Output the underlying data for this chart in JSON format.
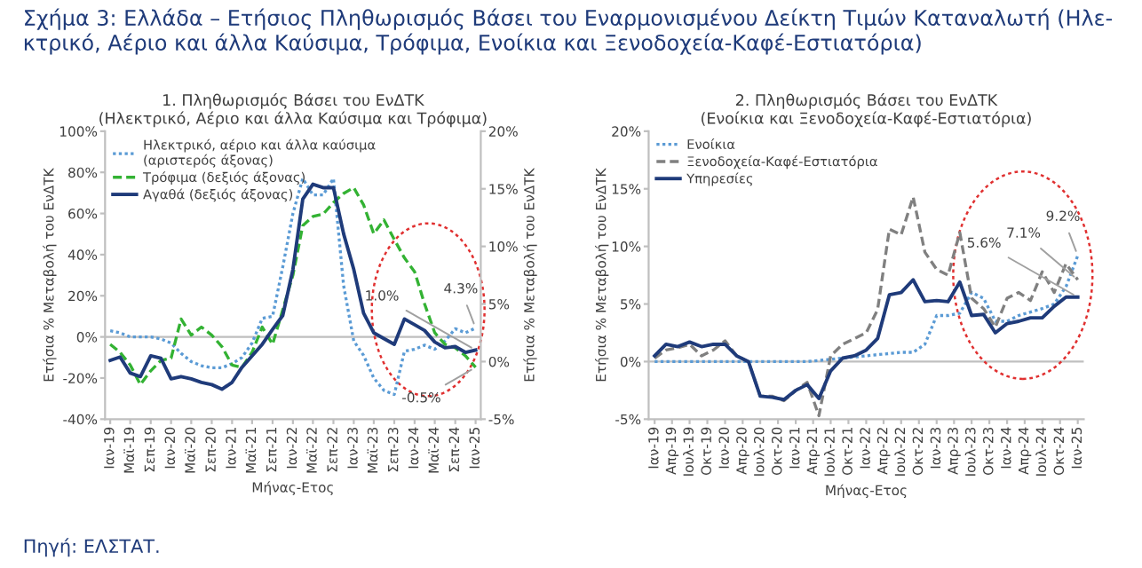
{
  "chart_data": [
    {
      "type": "line",
      "title": "1. Πληθωρισμός Βάσει του ΕνΔΤΚ\n(Ηλεκτρικό, Αέριο και άλλα Καύσιμα και Τρόφιμα)",
      "xlabel": "Μήνας-Ετος",
      "ylabel": "Ετήσια % Μεταβολή του ΕνΔΤΚ",
      "y2label": "Ετήσια % Μεταβολή του ΕνΔΤΚ",
      "annotations": [
        "Σχήμα 3: Ελλάδα – Ετήσιος Πληθωρισμός Βάσει του Εναρμονισμένου Δείκτη Τιμών Καταναλωτή (Ηλε-\nκτρικό, Αέριο και άλλα Καύσιμα, Τρόφιμα, Ενοίκια και Ξενοδοχεία-Καφέ-Εστιατόρια)",
        "Πηγή: ΕΛΣΤΑΤ."
      ],
      "x": [
        "2019-01",
        "2019-03",
        "2019-05",
        "2019-07",
        "2019-09",
        "2019-11",
        "2020-01",
        "2020-03",
        "2020-05",
        "2020-07",
        "2020-09",
        "2020-11",
        "2021-01",
        "2021-03",
        "2021-05",
        "2021-07",
        "2021-09",
        "2021-11",
        "2022-01",
        "2022-03",
        "2022-05",
        "2022-07",
        "2022-09",
        "2022-11",
        "2023-01",
        "2023-03",
        "2023-05",
        "2023-07",
        "2023-09",
        "2023-11",
        "2024-01",
        "2024-03",
        "2024-05",
        "2024-07",
        "2024-09",
        "2024-11",
        "2025-01"
      ],
      "series": [
        {
          "name": "Ηλεκτρικό, αέριο και άλλα καύσιμα\n(αριστερός άξονας)",
          "color": "#5b9bd5",
          "line_style": "dotted",
          "values": [
            3,
            2,
            0,
            0,
            0,
            -1,
            -3,
            -8,
            -12,
            -14,
            -15,
            -15,
            -13,
            -10,
            -3,
            9,
            10,
            34,
            60,
            77,
            69,
            69,
            77,
            25,
            -2,
            -9,
            -20,
            -26,
            -28,
            -7,
            -6,
            -4,
            -6,
            -2,
            4,
            2,
            4.3
          ],
          "value_labels": [
            null,
            null,
            null,
            null,
            null,
            null,
            null,
            null,
            null,
            null,
            null,
            null,
            null,
            null,
            null,
            null,
            null,
            null,
            null,
            null,
            null,
            null,
            null,
            null,
            null,
            null,
            null,
            null,
            null,
            null,
            null,
            null,
            null,
            null,
            null,
            null,
            "4.3%"
          ]
        },
        {
          "name": "Τρόφιμα (δεξιός άξονας)",
          "color": "#33b233",
          "line_style": "dashed",
          "axis": "y2",
          "values": [
            1.5,
            0.8,
            -0.3,
            -2.0,
            -0.8,
            0.1,
            0.3,
            3.7,
            2.3,
            3,
            2.3,
            1.3,
            -0.3,
            -0.5,
            0.8,
            3,
            1.5,
            4.5,
            7.5,
            11.8,
            12.6,
            12.8,
            13.8,
            14.6,
            15.1,
            13.6,
            11.1,
            12.3,
            10.6,
            9.0,
            7.8,
            5.0,
            2.5,
            1.5,
            1.2,
            0.5,
            -0.5
          ],
          "value_labels": [
            null,
            null,
            null,
            null,
            null,
            null,
            null,
            null,
            null,
            null,
            null,
            null,
            null,
            null,
            null,
            null,
            null,
            null,
            null,
            null,
            null,
            null,
            null,
            null,
            null,
            null,
            null,
            null,
            null,
            null,
            null,
            null,
            null,
            null,
            null,
            null,
            "-0.5%"
          ]
        },
        {
          "name": "Αγαθά (δεξιός άξονας)",
          "color": "#1f3b7a",
          "line_style": "solid",
          "axis": "y2",
          "values": [
            0.1,
            0.4,
            -1.0,
            -1.3,
            0.5,
            0.3,
            -1.5,
            -1.3,
            -1.5,
            -1.8,
            -2.0,
            -2.4,
            -1.8,
            -0.5,
            0.5,
            1.5,
            2.8,
            4.0,
            8.0,
            14.1,
            15.4,
            15.1,
            15.1,
            11.1,
            8.0,
            4.2,
            2.5,
            2.0,
            1.5,
            3.7,
            3.2,
            2.7,
            1.7,
            1.2,
            1.3,
            0.8,
            1.0
          ],
          "value_labels": [
            null,
            null,
            null,
            null,
            null,
            null,
            null,
            null,
            null,
            null,
            null,
            null,
            null,
            null,
            null,
            null,
            null,
            null,
            null,
            null,
            null,
            null,
            null,
            null,
            null,
            null,
            null,
            null,
            null,
            null,
            null,
            null,
            null,
            null,
            null,
            null,
            "1.0%"
          ]
        }
      ],
      "xlim": [
        "2018-12",
        "2025-02"
      ],
      "xticks": [
        {
          "value": "2019-01",
          "label": "Ιαν-19"
        },
        {
          "value": "2019-05",
          "label": "Μαϊ-19"
        },
        {
          "value": "2019-09",
          "label": "Σεπ-19"
        },
        {
          "value": "2020-01",
          "label": "Ιαν-20"
        },
        {
          "value": "2020-05",
          "label": "Μαϊ-20"
        },
        {
          "value": "2020-09",
          "label": "Σεπ-20"
        },
        {
          "value": "2021-01",
          "label": "Ιαν-21"
        },
        {
          "value": "2021-05",
          "label": "Μαϊ-21"
        },
        {
          "value": "2021-09",
          "label": "Σεπ-21"
        },
        {
          "value": "2022-01",
          "label": "Ιαν-22"
        },
        {
          "value": "2022-05",
          "label": "Μαϊ-22"
        },
        {
          "value": "2022-09",
          "label": "Σεπ-22"
        },
        {
          "value": "2023-01",
          "label": "Ιαν-23"
        },
        {
          "value": "2023-05",
          "label": "Μαϊ-23"
        },
        {
          "value": "2023-09",
          "label": "Σεπ-23"
        },
        {
          "value": "2024-01",
          "label": "Ιαν-24"
        },
        {
          "value": "2024-05",
          "label": "Μαϊ-24"
        },
        {
          "value": "2024-09",
          "label": "Σεπ-24"
        },
        {
          "value": "2025-01",
          "label": "Ιαν-25"
        }
      ],
      "ylim": [
        -40,
        100
      ],
      "yticks": [
        {
          "value": -40,
          "label": "-40%"
        },
        {
          "value": -20,
          "label": "-20%"
        },
        {
          "value": 0,
          "label": "0%"
        },
        {
          "value": 20,
          "label": "20%"
        },
        {
          "value": 40,
          "label": "40%"
        },
        {
          "value": 60,
          "label": "60%"
        },
        {
          "value": 80,
          "label": "80%"
        },
        {
          "value": 100,
          "label": "100%"
        }
      ],
      "y2lim": [
        -5,
        20
      ],
      "y2ticks": [
        {
          "value": -5,
          "label": "-5%"
        },
        {
          "value": 0,
          "label": "0%"
        },
        {
          "value": 5,
          "label": "5%"
        },
        {
          "value": 10,
          "label": "10%"
        },
        {
          "value": 15,
          "label": "15%"
        },
        {
          "value": 20,
          "label": "20%"
        }
      ],
      "ref_lines": [
        {
          "axis": "y",
          "value": 0,
          "color": "#bfbfbf"
        }
      ],
      "grid": false,
      "legend": "top left"
    },
    {
      "type": "line",
      "title": "2. Πληθωρισμός Βάσει του ΕνΔΤΚ\n(Ενοίκια και Ξενοδοχεία-Καφέ-Εστιατόρια)",
      "xlabel": "Μήνας-Ετος",
      "ylabel": "Ετήσια % Μεταβολή του ΕνΔΤΚ",
      "x": [
        "2019-01",
        "2019-03",
        "2019-05",
        "2019-07",
        "2019-09",
        "2019-11",
        "2020-01",
        "2020-03",
        "2020-05",
        "2020-07",
        "2020-09",
        "2020-11",
        "2021-01",
        "2021-03",
        "2021-05",
        "2021-07",
        "2021-09",
        "2021-11",
        "2022-01",
        "2022-03",
        "2022-05",
        "2022-07",
        "2022-09",
        "2022-11",
        "2023-01",
        "2023-03",
        "2023-05",
        "2023-07",
        "2023-09",
        "2023-11",
        "2024-01",
        "2024-03",
        "2024-05",
        "2024-07",
        "2024-09",
        "2024-11",
        "2025-01"
      ],
      "series": [
        {
          "name": "Ενοίκια",
          "color": "#5b9bd5",
          "line_style": "dotted",
          "values": [
            0,
            0,
            0,
            0,
            0,
            0,
            0,
            0,
            0,
            0,
            0,
            0,
            0,
            0,
            0.1,
            0.2,
            0.3,
            0.4,
            0.5,
            0.6,
            0.7,
            0.8,
            0.8,
            1.5,
            4.0,
            4.0,
            4.2,
            6.0,
            5.5,
            3.5,
            3.5,
            4.0,
            4.3,
            4.6,
            5.0,
            6.5,
            9.2
          ],
          "value_labels": [
            null,
            null,
            null,
            null,
            null,
            null,
            null,
            null,
            null,
            null,
            null,
            null,
            null,
            null,
            null,
            null,
            null,
            null,
            null,
            null,
            null,
            null,
            null,
            null,
            null,
            null,
            null,
            null,
            null,
            null,
            null,
            null,
            null,
            null,
            null,
            null,
            "9.2%"
          ]
        },
        {
          "name": "Ξενοδοχεία-Καφέ-Εστιατόρια",
          "color": "#808080",
          "line_style": "dashed",
          "values": [
            0.3,
            1.0,
            1.2,
            1.5,
            0.5,
            1.0,
            1.8,
            0.5,
            0,
            -3.0,
            -3.0,
            -3.4,
            -2.5,
            -1.8,
            -4.7,
            0.5,
            1.5,
            2.0,
            2.5,
            4.5,
            11.5,
            11.0,
            14.3,
            9.5,
            8.0,
            7.5,
            11.2,
            5.5,
            4.6,
            3.0,
            5.5,
            6.0,
            5.3,
            7.8,
            6.0,
            8.5,
            7.1
          ],
          "value_labels": [
            null,
            null,
            null,
            null,
            null,
            null,
            null,
            null,
            null,
            null,
            null,
            null,
            null,
            null,
            null,
            null,
            null,
            null,
            null,
            null,
            null,
            null,
            null,
            null,
            null,
            null,
            null,
            null,
            null,
            null,
            null,
            null,
            null,
            null,
            null,
            null,
            "7.1%"
          ]
        },
        {
          "name": "Υπηρεσίες",
          "color": "#1f3b7a",
          "line_style": "solid",
          "values": [
            0.5,
            1.5,
            1.3,
            1.7,
            1.3,
            1.5,
            1.5,
            0.5,
            0,
            -3.0,
            -3.1,
            -3.3,
            -2.5,
            -2.0,
            -3.2,
            -0.8,
            0.3,
            0.5,
            1.0,
            2.0,
            5.8,
            6.0,
            7.1,
            5.2,
            5.3,
            5.2,
            6.9,
            4.0,
            4.1,
            2.5,
            3.3,
            3.5,
            3.8,
            3.8,
            4.8,
            5.6,
            5.6
          ],
          "value_labels": [
            null,
            null,
            null,
            null,
            null,
            null,
            null,
            null,
            null,
            null,
            null,
            null,
            null,
            null,
            null,
            null,
            null,
            null,
            null,
            null,
            null,
            null,
            null,
            null,
            null,
            null,
            null,
            null,
            null,
            null,
            null,
            null,
            null,
            null,
            null,
            null,
            "5.6%"
          ]
        }
      ],
      "xlim": [
        "2018-12",
        "2025-02"
      ],
      "xticks": [
        {
          "value": "2019-01",
          "label": "Ιαν-19"
        },
        {
          "value": "2019-04",
          "label": "Απρ-19"
        },
        {
          "value": "2019-07",
          "label": "Ιουλ-19"
        },
        {
          "value": "2019-10",
          "label": "Οκτ-19"
        },
        {
          "value": "2020-01",
          "label": "Ιαν-20"
        },
        {
          "value": "2020-04",
          "label": "Απρ-20"
        },
        {
          "value": "2020-07",
          "label": "Ιουλ-20"
        },
        {
          "value": "2020-10",
          "label": "Οκτ-20"
        },
        {
          "value": "2021-01",
          "label": "Ιαν-21"
        },
        {
          "value": "2021-04",
          "label": "Απρ-21"
        },
        {
          "value": "2021-07",
          "label": "Ιουλ-21"
        },
        {
          "value": "2021-10",
          "label": "Οκτ-21"
        },
        {
          "value": "2022-01",
          "label": "Ιαν-22"
        },
        {
          "value": "2022-04",
          "label": "Απρ-22"
        },
        {
          "value": "2022-07",
          "label": "Ιουλ-22"
        },
        {
          "value": "2022-10",
          "label": "Οκτ-22"
        },
        {
          "value": "2023-01",
          "label": "Ιαν-23"
        },
        {
          "value": "2023-04",
          "label": "Απρ-23"
        },
        {
          "value": "2023-07",
          "label": "Ιουλ-23"
        },
        {
          "value": "2023-10",
          "label": "Οκτ-23"
        },
        {
          "value": "2024-01",
          "label": "Ιαν-24"
        },
        {
          "value": "2024-04",
          "label": "Απρ-24"
        },
        {
          "value": "2024-07",
          "label": "Ιουλ-24"
        },
        {
          "value": "2024-10",
          "label": "Οκτ-24"
        },
        {
          "value": "2025-01",
          "label": "Ιαν-25"
        }
      ],
      "ylim": [
        -5,
        20
      ],
      "yticks": [
        {
          "value": -5,
          "label": "-5%"
        },
        {
          "value": 0,
          "label": "0%"
        },
        {
          "value": 5,
          "label": "5%"
        },
        {
          "value": 10,
          "label": "10%"
        },
        {
          "value": 15,
          "label": "15%"
        },
        {
          "value": 20,
          "label": "20%"
        }
      ],
      "ref_lines": [
        {
          "axis": "y",
          "value": 0,
          "color": "#bfbfbf"
        }
      ],
      "grid": false,
      "legend": "top left"
    }
  ]
}
